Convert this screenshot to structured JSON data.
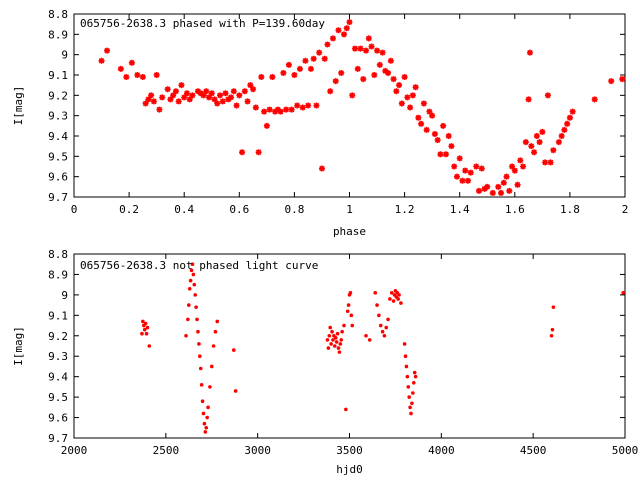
{
  "chart_data": [
    {
      "type": "scatter",
      "title": "065756-2638.3 phased with P=139.60day",
      "xlabel": "phase",
      "ylabel": "I[mag]",
      "xlim": [
        0,
        2
      ],
      "ylim": [
        9.7,
        8.8
      ],
      "y_inverted": true,
      "grid": false,
      "marker_color": "#ff0000",
      "xticks": [
        "0",
        "0.2",
        "0.4",
        "0.6",
        "0.8",
        "1",
        "1.2",
        "1.4",
        "1.6",
        "1.8",
        "2"
      ],
      "yticks": [
        "8.8",
        "8.9",
        "9",
        "9.1",
        "9.2",
        "9.3",
        "9.4",
        "9.5",
        "9.6",
        "9.7"
      ],
      "points": [
        [
          0.1,
          9.03
        ],
        [
          0.12,
          8.98
        ],
        [
          0.17,
          9.07
        ],
        [
          0.19,
          9.11
        ],
        [
          0.21,
          9.04
        ],
        [
          0.23,
          9.1
        ],
        [
          0.25,
          9.11
        ],
        [
          0.26,
          9.24
        ],
        [
          0.27,
          9.22
        ],
        [
          0.28,
          9.2
        ],
        [
          0.29,
          9.23
        ],
        [
          0.3,
          9.1
        ],
        [
          0.31,
          9.27
        ],
        [
          0.32,
          9.21
        ],
        [
          0.34,
          9.17
        ],
        [
          0.35,
          9.22
        ],
        [
          0.36,
          9.2
        ],
        [
          0.37,
          9.18
        ],
        [
          0.38,
          9.23
        ],
        [
          0.39,
          9.15
        ],
        [
          0.4,
          9.21
        ],
        [
          0.41,
          9.19
        ],
        [
          0.42,
          9.22
        ],
        [
          0.43,
          9.2
        ],
        [
          0.45,
          9.18
        ],
        [
          0.46,
          9.19
        ],
        [
          0.47,
          9.2
        ],
        [
          0.48,
          9.18
        ],
        [
          0.49,
          9.21
        ],
        [
          0.5,
          9.19
        ],
        [
          0.51,
          9.22
        ],
        [
          0.52,
          9.24
        ],
        [
          0.53,
          9.2
        ],
        [
          0.54,
          9.23
        ],
        [
          0.55,
          9.19
        ],
        [
          0.56,
          9.22
        ],
        [
          0.57,
          9.21
        ],
        [
          0.58,
          9.18
        ],
        [
          0.59,
          9.25
        ],
        [
          0.6,
          9.2
        ],
        [
          0.61,
          9.48
        ],
        [
          0.62,
          9.18
        ],
        [
          0.63,
          9.23
        ],
        [
          0.64,
          9.15
        ],
        [
          0.65,
          9.17
        ],
        [
          0.66,
          9.26
        ],
        [
          0.67,
          9.48
        ],
        [
          0.68,
          9.11
        ],
        [
          0.69,
          9.28
        ],
        [
          0.7,
          9.35
        ],
        [
          0.71,
          9.27
        ],
        [
          0.72,
          9.11
        ],
        [
          0.73,
          9.28
        ],
        [
          0.74,
          9.27
        ],
        [
          0.75,
          9.28
        ],
        [
          0.76,
          9.09
        ],
        [
          0.77,
          9.27
        ],
        [
          0.78,
          9.05
        ],
        [
          0.79,
          9.27
        ],
        [
          0.8,
          9.1
        ],
        [
          0.81,
          9.25
        ],
        [
          0.82,
          9.07
        ],
        [
          0.83,
          9.26
        ],
        [
          0.84,
          9.03
        ],
        [
          0.85,
          9.25
        ],
        [
          0.86,
          9.07
        ],
        [
          0.87,
          9.02
        ],
        [
          0.88,
          9.25
        ],
        [
          0.89,
          8.99
        ],
        [
          0.9,
          9.56
        ],
        [
          0.91,
          9.02
        ],
        [
          0.92,
          8.95
        ],
        [
          0.93,
          9.18
        ],
        [
          0.94,
          8.92
        ],
        [
          0.95,
          9.13
        ],
        [
          0.96,
          8.88
        ],
        [
          0.97,
          9.09
        ],
        [
          0.98,
          8.9
        ],
        [
          0.99,
          8.87
        ],
        [
          1.0,
          8.84
        ],
        [
          1.01,
          9.2
        ],
        [
          1.02,
          8.97
        ],
        [
          1.03,
          9.07
        ],
        [
          1.04,
          8.97
        ],
        [
          1.05,
          9.12
        ],
        [
          1.06,
          8.98
        ],
        [
          1.07,
          8.92
        ],
        [
          1.08,
          8.96
        ],
        [
          1.09,
          9.1
        ],
        [
          1.1,
          8.98
        ],
        [
          1.11,
          9.05
        ],
        [
          1.12,
          8.99
        ],
        [
          1.13,
          9.08
        ],
        [
          1.14,
          9.09
        ],
        [
          1.15,
          9.03
        ],
        [
          1.16,
          9.12
        ],
        [
          1.17,
          9.18
        ],
        [
          1.18,
          9.15
        ],
        [
          1.19,
          9.24
        ],
        [
          1.2,
          9.11
        ],
        [
          1.21,
          9.21
        ],
        [
          1.22,
          9.26
        ],
        [
          1.23,
          9.2
        ],
        [
          1.24,
          9.16
        ],
        [
          1.25,
          9.31
        ],
        [
          1.26,
          9.34
        ],
        [
          1.27,
          9.24
        ],
        [
          1.28,
          9.37
        ],
        [
          1.29,
          9.28
        ],
        [
          1.3,
          9.3
        ],
        [
          1.31,
          9.39
        ],
        [
          1.32,
          9.42
        ],
        [
          1.33,
          9.49
        ],
        [
          1.34,
          9.35
        ],
        [
          1.35,
          9.49
        ],
        [
          1.36,
          9.4
        ],
        [
          1.37,
          9.45
        ],
        [
          1.38,
          9.55
        ],
        [
          1.39,
          9.6
        ],
        [
          1.4,
          9.51
        ],
        [
          1.41,
          9.62
        ],
        [
          1.42,
          9.57
        ],
        [
          1.43,
          9.62
        ],
        [
          1.44,
          9.58
        ],
        [
          1.46,
          9.55
        ],
        [
          1.47,
          9.67
        ],
        [
          1.48,
          9.56
        ],
        [
          1.49,
          9.66
        ],
        [
          1.5,
          9.65
        ],
        [
          1.52,
          9.68
        ],
        [
          1.54,
          9.65
        ],
        [
          1.55,
          9.68
        ],
        [
          1.56,
          9.63
        ],
        [
          1.57,
          9.6
        ],
        [
          1.58,
          9.67
        ],
        [
          1.59,
          9.55
        ],
        [
          1.6,
          9.57
        ],
        [
          1.61,
          9.64
        ],
        [
          1.62,
          9.52
        ],
        [
          1.63,
          9.55
        ],
        [
          1.64,
          9.43
        ],
        [
          1.65,
          9.22
        ],
        [
          1.655,
          8.99
        ],
        [
          1.66,
          9.45
        ],
        [
          1.67,
          9.48
        ],
        [
          1.68,
          9.4
        ],
        [
          1.69,
          9.43
        ],
        [
          1.7,
          9.38
        ],
        [
          1.71,
          9.53
        ],
        [
          1.72,
          9.2
        ],
        [
          1.73,
          9.53
        ],
        [
          1.74,
          9.47
        ],
        [
          1.76,
          9.43
        ],
        [
          1.77,
          9.4
        ],
        [
          1.78,
          9.37
        ],
        [
          1.79,
          9.34
        ],
        [
          1.8,
          9.31
        ],
        [
          1.81,
          9.28
        ],
        [
          1.89,
          9.22
        ],
        [
          1.95,
          9.13
        ],
        [
          1.99,
          9.12
        ]
      ]
    },
    {
      "type": "scatter",
      "title": "065756-2638.3 not phased light curve",
      "xlabel": "hjd0",
      "ylabel": "I[mag]",
      "xlim": [
        2000,
        5000
      ],
      "ylim": [
        9.7,
        8.8
      ],
      "y_inverted": true,
      "grid": false,
      "marker_color": "#ff0000",
      "xticks": [
        "2000",
        "2500",
        "3000",
        "3500",
        "4000",
        "4500",
        "5000"
      ],
      "yticks": [
        "8.8",
        "8.9",
        "9",
        "9.1",
        "9.2",
        "9.3",
        "9.4",
        "9.5",
        "9.6",
        "9.7"
      ],
      "points": [
        [
          2370,
          9.19
        ],
        [
          2375,
          9.13
        ],
        [
          2380,
          9.15
        ],
        [
          2385,
          9.17
        ],
        [
          2390,
          9.14
        ],
        [
          2395,
          9.19
        ],
        [
          2400,
          9.16
        ],
        [
          2410,
          9.25
        ],
        [
          2610,
          9.2
        ],
        [
          2620,
          9.12
        ],
        [
          2625,
          9.05
        ],
        [
          2630,
          8.97
        ],
        [
          2635,
          8.93
        ],
        [
          2640,
          8.88
        ],
        [
          2645,
          8.85
        ],
        [
          2650,
          8.9
        ],
        [
          2655,
          8.95
        ],
        [
          2660,
          9.0
        ],
        [
          2665,
          9.06
        ],
        [
          2670,
          9.12
        ],
        [
          2675,
          9.18
        ],
        [
          2680,
          9.24
        ],
        [
          2685,
          9.3
        ],
        [
          2690,
          9.36
        ],
        [
          2695,
          9.44
        ],
        [
          2700,
          9.52
        ],
        [
          2705,
          9.58
        ],
        [
          2710,
          9.63
        ],
        [
          2715,
          9.67
        ],
        [
          2720,
          9.65
        ],
        [
          2725,
          9.6
        ],
        [
          2730,
          9.55
        ],
        [
          2740,
          9.45
        ],
        [
          2750,
          9.35
        ],
        [
          2760,
          9.25
        ],
        [
          2770,
          9.18
        ],
        [
          2780,
          9.13
        ],
        [
          2870,
          9.27
        ],
        [
          2880,
          9.47
        ],
        [
          3380,
          9.22
        ],
        [
          3385,
          9.26
        ],
        [
          3390,
          9.2
        ],
        [
          3395,
          9.16
        ],
        [
          3400,
          9.24
        ],
        [
          3405,
          9.18
        ],
        [
          3410,
          9.22
        ],
        [
          3415,
          9.2
        ],
        [
          3420,
          9.25
        ],
        [
          3425,
          9.21
        ],
        [
          3430,
          9.23
        ],
        [
          3435,
          9.19
        ],
        [
          3440,
          9.26
        ],
        [
          3445,
          9.28
        ],
        [
          3450,
          9.24
        ],
        [
          3455,
          9.22
        ],
        [
          3460,
          9.18
        ],
        [
          3470,
          9.15
        ],
        [
          3480,
          9.56
        ],
        [
          3490,
          9.08
        ],
        [
          3495,
          9.05
        ],
        [
          3500,
          9.0
        ],
        [
          3505,
          8.99
        ],
        [
          3510,
          9.1
        ],
        [
          3515,
          9.15
        ],
        [
          3590,
          9.2
        ],
        [
          3610,
          9.22
        ],
        [
          3640,
          8.99
        ],
        [
          3650,
          9.05
        ],
        [
          3660,
          9.1
        ],
        [
          3670,
          9.15
        ],
        [
          3680,
          9.18
        ],
        [
          3690,
          9.2
        ],
        [
          3700,
          9.16
        ],
        [
          3710,
          9.12
        ],
        [
          3720,
          9.02
        ],
        [
          3730,
          8.99
        ],
        [
          3740,
          9.03
        ],
        [
          3745,
          9.0
        ],
        [
          3750,
          8.98
        ],
        [
          3755,
          9.01
        ],
        [
          3760,
          8.99
        ],
        [
          3765,
          9.02
        ],
        [
          3770,
          9.0
        ],
        [
          3780,
          9.04
        ],
        [
          3800,
          9.24
        ],
        [
          3805,
          9.3
        ],
        [
          3810,
          9.35
        ],
        [
          3815,
          9.4
        ],
        [
          3820,
          9.45
        ],
        [
          3825,
          9.5
        ],
        [
          3830,
          9.55
        ],
        [
          3835,
          9.58
        ],
        [
          3840,
          9.53
        ],
        [
          3845,
          9.48
        ],
        [
          3850,
          9.43
        ],
        [
          3855,
          9.38
        ],
        [
          3860,
          9.4
        ],
        [
          4600,
          9.2
        ],
        [
          4605,
          9.17
        ],
        [
          4610,
          9.06
        ],
        [
          4990,
          8.99
        ]
      ]
    }
  ]
}
